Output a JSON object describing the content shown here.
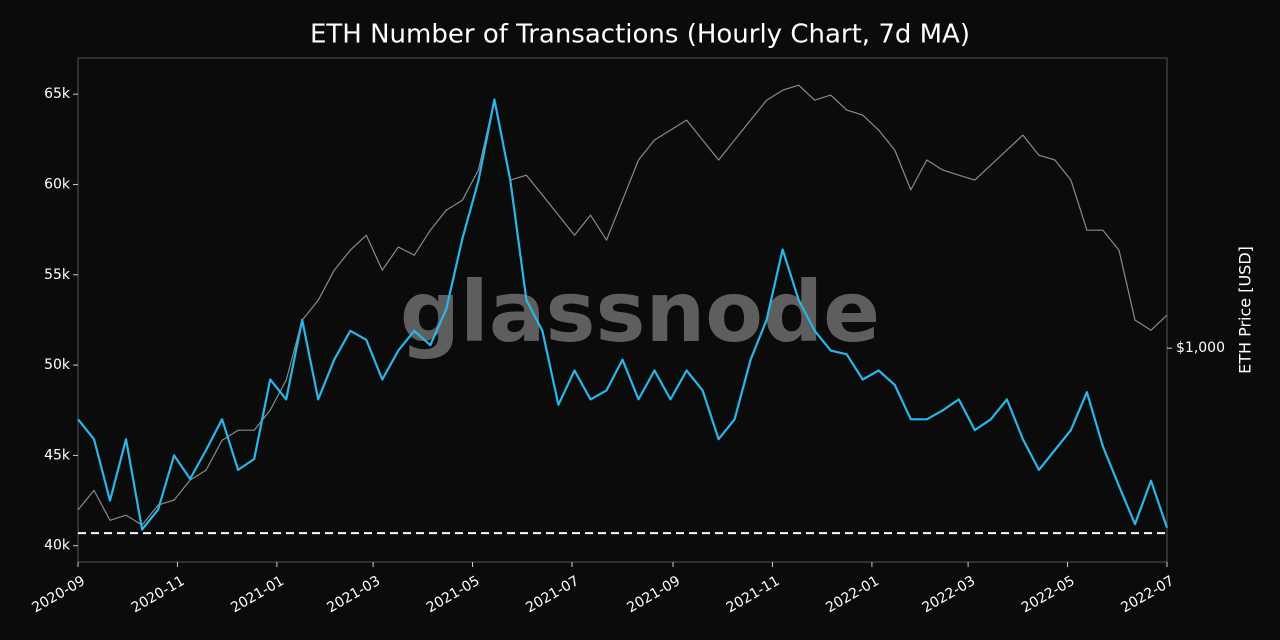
{
  "chart_data": {
    "type": "line",
    "title": "ETH Number of Transactions (Hourly Chart, 7d MA)",
    "y2_label": "ETH Price [USD]",
    "watermark": "glassnode",
    "xlim": [
      "2020-09",
      "2022-07"
    ],
    "xticks": [
      "2020-09",
      "2020-11",
      "2021-01",
      "2021-03",
      "2021-05",
      "2021-07",
      "2021-09",
      "2021-11",
      "2022-01",
      "2022-03",
      "2022-05",
      "2022-07"
    ],
    "ylim": [
      39100,
      67000
    ],
    "yticks": [
      {
        "value": 40000,
        "label": "40k"
      },
      {
        "value": 45000,
        "label": "45k"
      },
      {
        "value": 50000,
        "label": "50k"
      },
      {
        "value": 55000,
        "label": "55k"
      },
      {
        "value": 60000,
        "label": "60k"
      },
      {
        "value": 65000,
        "label": "65k"
      }
    ],
    "y2lim": [
      283,
      5546
    ],
    "y2scale": "log",
    "y2ticks": [
      {
        "value": 1000,
        "label": "$1,000"
      }
    ],
    "hline": 40700,
    "series": [
      {
        "name": "Number of Transactions",
        "color": "#2bb5e8",
        "values": [
          47000,
          45900,
          42500,
          45900,
          40900,
          42000,
          45000,
          43700,
          45300,
          47000,
          44200,
          44800,
          49200,
          48100,
          52500,
          48100,
          50300,
          51900,
          51400,
          49200,
          50800,
          51900,
          51100,
          53100,
          57000,
          60200,
          64700,
          60200,
          53600,
          51900,
          47800,
          49700,
          48100,
          48600,
          50300,
          48100,
          49700,
          48100,
          49700,
          48600,
          45900,
          47000,
          50300,
          52500,
          56400,
          53600,
          51900,
          50800,
          50600,
          49200,
          49700,
          48900,
          47000,
          47000,
          47500,
          48100,
          46400,
          47000,
          48100,
          45900,
          44200,
          45300,
          46400,
          48500,
          45500,
          43300,
          41200,
          43600,
          41000
        ]
      },
      {
        "name": "ETH Price",
        "color": "#8a8a8a",
        "axis": "y2",
        "values": [
          385,
          432,
          362,
          373,
          352,
          396,
          408,
          459,
          487,
          581,
          616,
          616,
          694,
          828,
          1180,
          1327,
          1585,
          1783,
          1948,
          1585,
          1817,
          1731,
          2007,
          2259,
          2396,
          2862,
          4323,
          2697,
          2776,
          2470,
          2194,
          1948,
          2194,
          1893,
          2396,
          3037,
          3417,
          3623,
          3844,
          3417,
          3037,
          3417,
          3844,
          4323,
          4587,
          4724,
          4323,
          4455,
          4077,
          3959,
          3623,
          3219,
          2545,
          3037,
          2862,
          2776,
          2697,
          2947,
          3219,
          3519,
          3124,
          3037,
          2697,
          2007,
          2007,
          1783,
          1180,
          1112,
          1215
        ]
      }
    ]
  }
}
